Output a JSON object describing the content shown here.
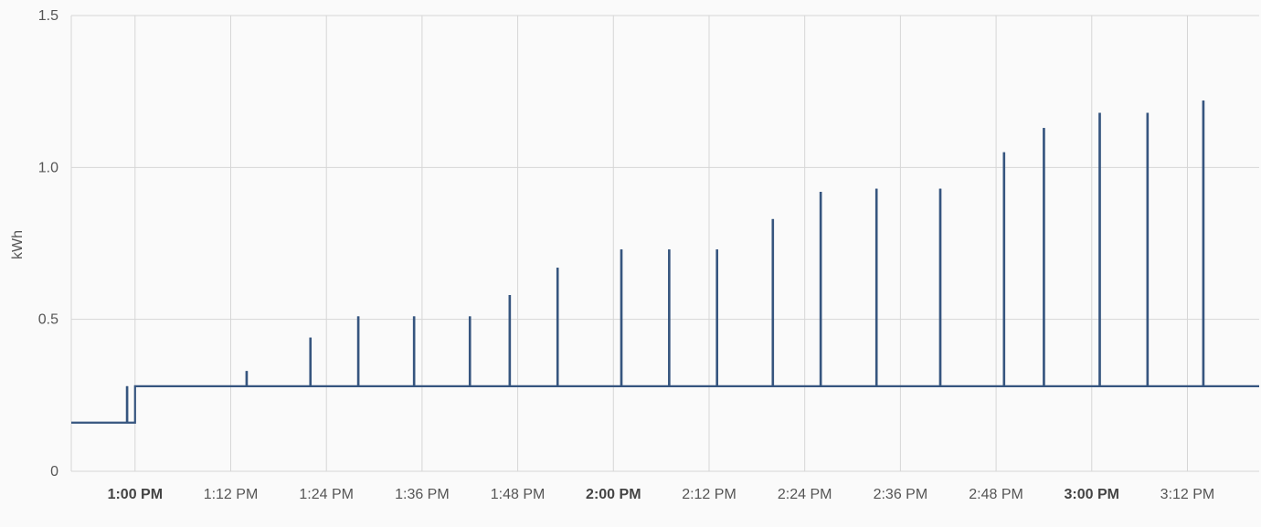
{
  "chart_data": {
    "type": "line",
    "ylabel": "kWh",
    "ylim": [
      0,
      1.5
    ],
    "y_ticks": [
      {
        "value": 0,
        "label": "0"
      },
      {
        "value": 0.5,
        "label": "0.5"
      },
      {
        "value": 1.0,
        "label": "1.0"
      },
      {
        "value": 1.5,
        "label": "1.5"
      }
    ],
    "xlim": [
      "12:52 PM",
      "3:21 PM"
    ],
    "x_ticks": [
      {
        "value": "1:00 PM",
        "label": "1:00 PM",
        "bold": true
      },
      {
        "value": "1:12 PM",
        "label": "1:12 PM",
        "bold": false
      },
      {
        "value": "1:24 PM",
        "label": "1:24 PM",
        "bold": false
      },
      {
        "value": "1:36 PM",
        "label": "1:36 PM",
        "bold": false
      },
      {
        "value": "1:48 PM",
        "label": "1:48 PM",
        "bold": false
      },
      {
        "value": "2:00 PM",
        "label": "2:00 PM",
        "bold": true
      },
      {
        "value": "2:12 PM",
        "label": "2:12 PM",
        "bold": false
      },
      {
        "value": "2:24 PM",
        "label": "2:24 PM",
        "bold": false
      },
      {
        "value": "2:36 PM",
        "label": "2:36 PM",
        "bold": false
      },
      {
        "value": "2:48 PM",
        "label": "2:48 PM",
        "bold": false
      },
      {
        "value": "3:00 PM",
        "label": "3:00 PM",
        "bold": true
      },
      {
        "value": "3:12 PM",
        "label": "3:12 PM",
        "bold": false
      }
    ],
    "grid": true,
    "color": "#36557f",
    "baseline_steps": [
      {
        "from": "12:52 PM",
        "to": "1:00 PM",
        "value": 0.16
      },
      {
        "from": "1:00 PM",
        "to": "3:21 PM",
        "value": 0.28
      }
    ],
    "spikes": [
      {
        "x": "12:59 PM",
        "y": 0.28
      },
      {
        "x": "1:14 PM",
        "y": 0.33
      },
      {
        "x": "1:22 PM",
        "y": 0.44
      },
      {
        "x": "1:28 PM",
        "y": 0.51
      },
      {
        "x": "1:35 PM",
        "y": 0.51
      },
      {
        "x": "1:42 PM",
        "y": 0.51
      },
      {
        "x": "1:47 PM",
        "y": 0.58
      },
      {
        "x": "1:53 PM",
        "y": 0.67
      },
      {
        "x": "2:01 PM",
        "y": 0.73
      },
      {
        "x": "2:07 PM",
        "y": 0.73
      },
      {
        "x": "2:13 PM",
        "y": 0.73
      },
      {
        "x": "2:20 PM",
        "y": 0.83
      },
      {
        "x": "2:26 PM",
        "y": 0.92
      },
      {
        "x": "2:33 PM",
        "y": 0.93
      },
      {
        "x": "2:41 PM",
        "y": 0.93
      },
      {
        "x": "2:49 PM",
        "y": 1.05
      },
      {
        "x": "2:54 PM",
        "y": 1.13
      },
      {
        "x": "3:01 PM",
        "y": 1.18
      },
      {
        "x": "3:07 PM",
        "y": 1.18
      },
      {
        "x": "3:14 PM",
        "y": 1.22
      }
    ]
  }
}
